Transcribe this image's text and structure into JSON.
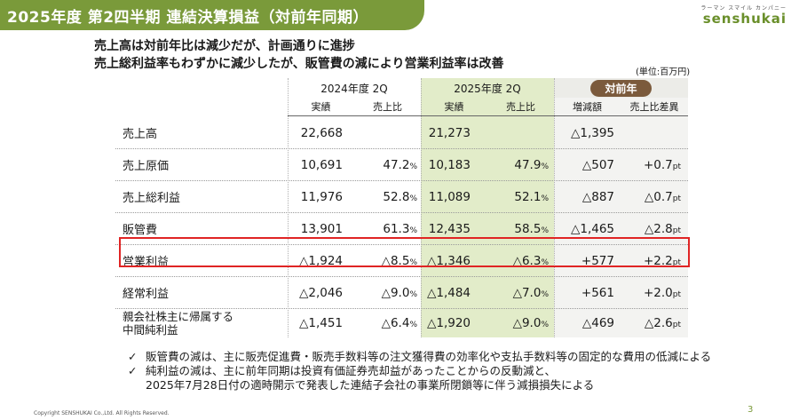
{
  "header": {
    "title": "2025年度 第2四半期 連結決算損益（対前年同期）",
    "logo_sub": "ラーマン スマイル カンパニー",
    "logo_main": "senshukai"
  },
  "headline": {
    "line1": "売上高は対前年比は減少だが、計画通りに進捗",
    "line2": "売上総利益率もわずかに減少したが、販管費の減により営業利益率は改善"
  },
  "unit": "(単位:百万円)",
  "table": {
    "period_2024": "2024年度 2Q",
    "period_2025": "2025年度 2Q",
    "yoy": "対前年",
    "sub_headers": {
      "actual_2024": "実績",
      "ratio_2024": "売上比",
      "actual_2025": "実績",
      "ratio_2025": "売上比",
      "change": "増減額",
      "ratio_diff": "売上比差異"
    },
    "rows": [
      {
        "label": "売上高",
        "a24": "22,668",
        "r24": "",
        "r24u": "",
        "a25": "21,273",
        "r25": "",
        "r25u": "",
        "chg": "△1,395",
        "diff": "",
        "diffu": ""
      },
      {
        "label": "売上原価",
        "a24": "10,691",
        "r24": "47.2",
        "r24u": "%",
        "a25": "10,183",
        "r25": "47.9",
        "r25u": "%",
        "chg": "△507",
        "diff": "+0.7",
        "diffu": "pt"
      },
      {
        "label": "売上総利益",
        "a24": "11,976",
        "r24": "52.8",
        "r24u": "%",
        "a25": "11,089",
        "r25": "52.1",
        "r25u": "%",
        "chg": "△887",
        "diff": "△0.7",
        "diffu": "pt"
      },
      {
        "label": "販管費",
        "a24": "13,901",
        "r24": "61.3",
        "r24u": "%",
        "a25": "12,435",
        "r25": "58.5",
        "r25u": "%",
        "chg": "△1,465",
        "diff": "△2.8",
        "diffu": "pt"
      },
      {
        "label": "営業利益",
        "a24": "△1,924",
        "r24": "△8.5",
        "r24u": "%",
        "a25": "△1,346",
        "r25": "△6.3",
        "r25u": "%",
        "chg": "+577",
        "diff": "+2.2",
        "diffu": "pt"
      },
      {
        "label": "経常利益",
        "a24": "△2,046",
        "r24": "△9.0",
        "r24u": "%",
        "a25": "△1,484",
        "r25": "△7.0",
        "r25u": "%",
        "chg": "+561",
        "diff": "+2.0",
        "diffu": "pt"
      },
      {
        "label": "親会社株主に帰属する",
        "label2": "中間純利益",
        "a24": "△1,451",
        "r24": "△6.4",
        "r24u": "%",
        "a25": "△1,920",
        "r25": "△9.0",
        "r25u": "%",
        "chg": "△469",
        "diff": "△2.6",
        "diffu": "pt"
      }
    ]
  },
  "notes": {
    "check": "✓",
    "note1": "販管費の減は、主に販売促進費・販売手数料等の注文獲得費の効率化や支払手数料等の固定的な費用の低減による",
    "note2_line1": "純利益の減は、主に前年同期は投資有価証券売却益があったことからの反動減と、",
    "note2_line2": "2025年7月28日付の適時開示で発表した連結子会社の事業所閉鎖等に伴う減損損失による"
  },
  "footer": {
    "copyright": "Copyright SENSHUKAI Co.,Ltd. All Rights Reserved.",
    "page": "3"
  },
  "colors": {
    "title_bar": "#7a9a3a",
    "col_2025_bg": "#e2ecc9",
    "yoy_badge": "#7b5a3c",
    "highlight_border": "#e02424"
  }
}
